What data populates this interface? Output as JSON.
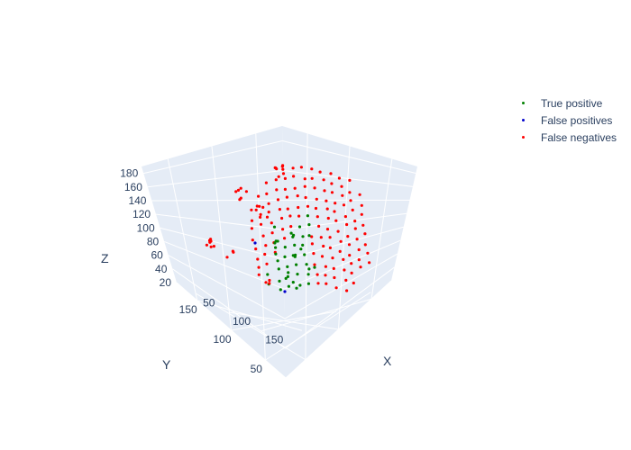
{
  "chart_data": {
    "type": "scatter3d",
    "axes": {
      "x": {
        "label": "X",
        "ticks": [
          50,
          100,
          150
        ]
      },
      "y": {
        "label": "Y",
        "ticks": [
          50,
          100,
          150
        ]
      },
      "z": {
        "label": "Z",
        "ticks": [
          20,
          40,
          60,
          80,
          100,
          120,
          140,
          160,
          180
        ]
      }
    },
    "legend_position": "top-right",
    "grid": true,
    "background_color": "#e5ecf6",
    "series": [
      {
        "name": "True positive",
        "color": "#008000"
      },
      {
        "name": "False positives",
        "color": "#0000cc"
      },
      {
        "name": "False negatives",
        "color": "#ff0000"
      }
    ]
  }
}
